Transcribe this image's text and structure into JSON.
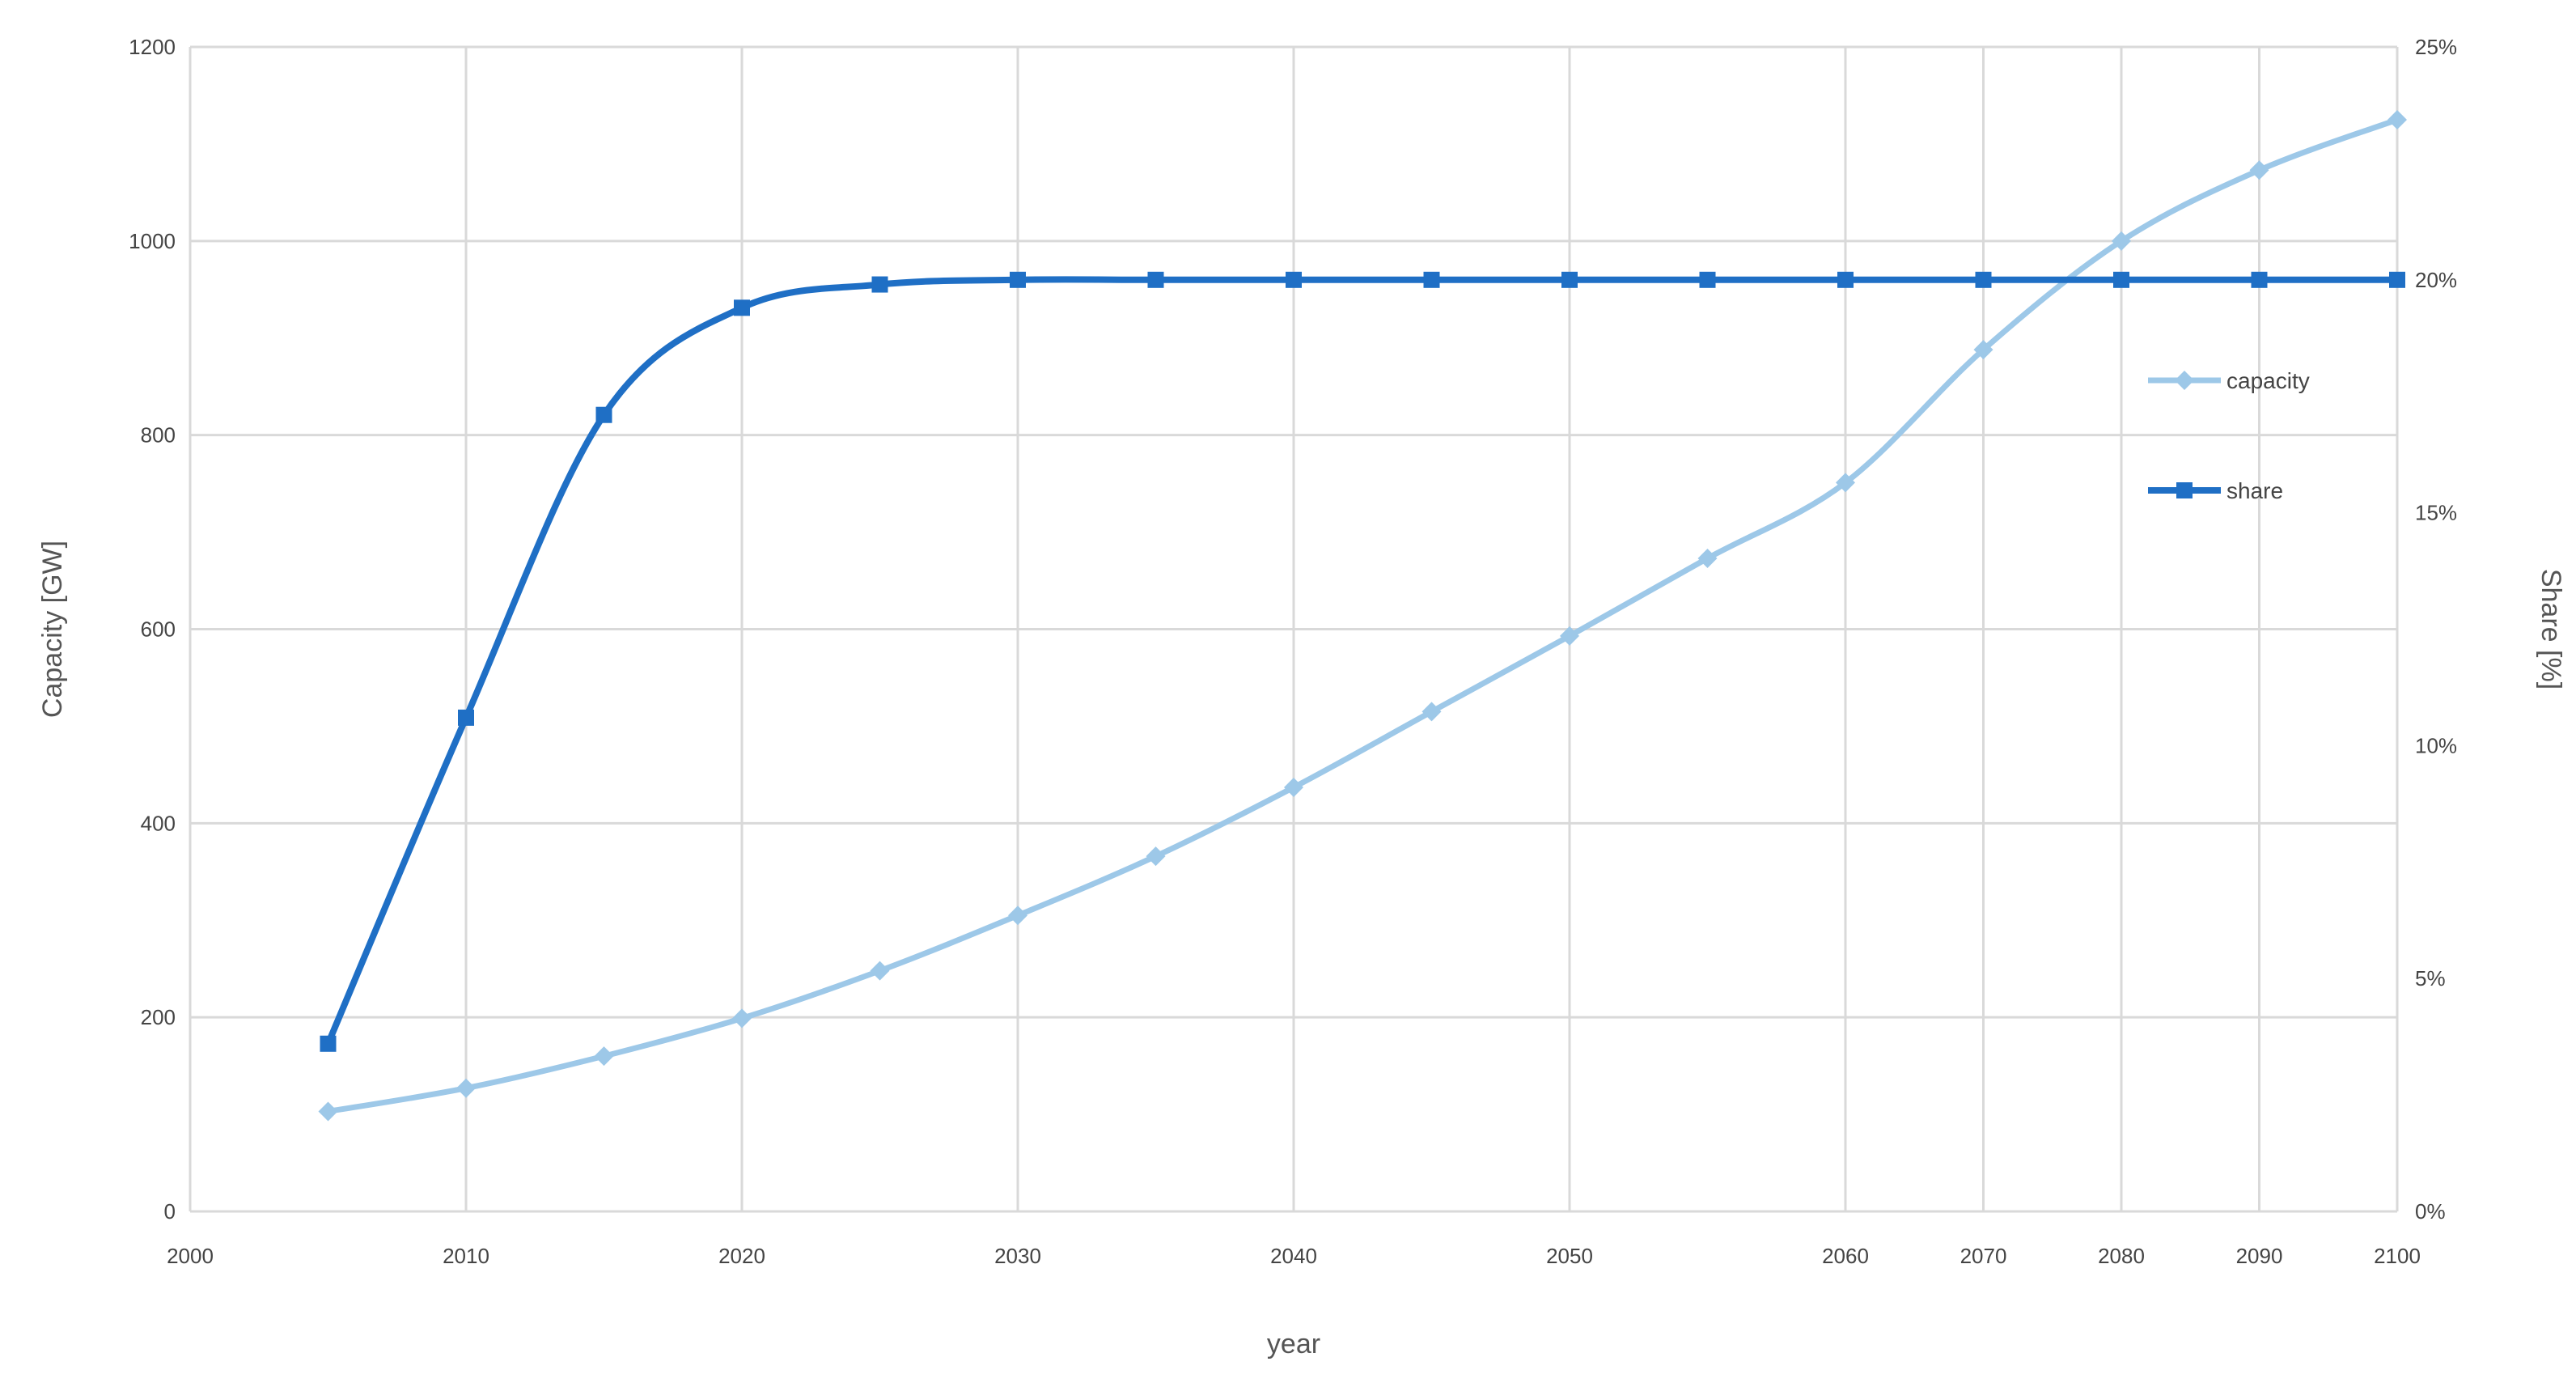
{
  "chart_data": {
    "type": "line",
    "title": "",
    "xlabel": "year",
    "ylabel_left": "Capacity [GW]",
    "ylabel_right": "Share [%]",
    "xlim": [
      2000,
      2100
    ],
    "ylim_left": [
      0,
      1200
    ],
    "ylim_right": [
      0,
      25
    ],
    "x_ticks": [
      "2000",
      "2010",
      "2020",
      "2030",
      "2040",
      "2050",
      "2060",
      "2070",
      "2080",
      "2090",
      "2100"
    ],
    "y_left_ticks": [
      "0",
      "200",
      "400",
      "600",
      "800",
      "1000",
      "1200"
    ],
    "y_right_ticks": [
      "0%",
      "5%",
      "10%",
      "15%",
      "20%",
      "25%"
    ],
    "grid": true,
    "legend_position": "right",
    "series": [
      {
        "name": "capacity",
        "axis": "left",
        "color": "#9dc8e8",
        "marker": "diamond",
        "x": [
          2005,
          2010,
          2015,
          2020,
          2025,
          2030,
          2035,
          2040,
          2045,
          2050,
          2055,
          2060,
          2070,
          2080,
          2090,
          2100
        ],
        "values": [
          103,
          127,
          160,
          199,
          248,
          305,
          366,
          437,
          515,
          593,
          673,
          751,
          888,
          1000,
          1073,
          1125
        ]
      },
      {
        "name": "share",
        "axis": "right",
        "color": "#1f6fc5",
        "marker": "square",
        "x": [
          2005,
          2010,
          2015,
          2020,
          2025,
          2030,
          2035,
          2040,
          2045,
          2050,
          2055,
          2060,
          2070,
          2080,
          2090,
          2100
        ],
        "values": [
          3.6,
          10.6,
          17.1,
          19.4,
          19.9,
          20.0,
          20.0,
          20.0,
          20.0,
          20.0,
          20.0,
          20.0,
          20.0,
          20.0,
          20.0,
          20.0
        ]
      }
    ]
  }
}
